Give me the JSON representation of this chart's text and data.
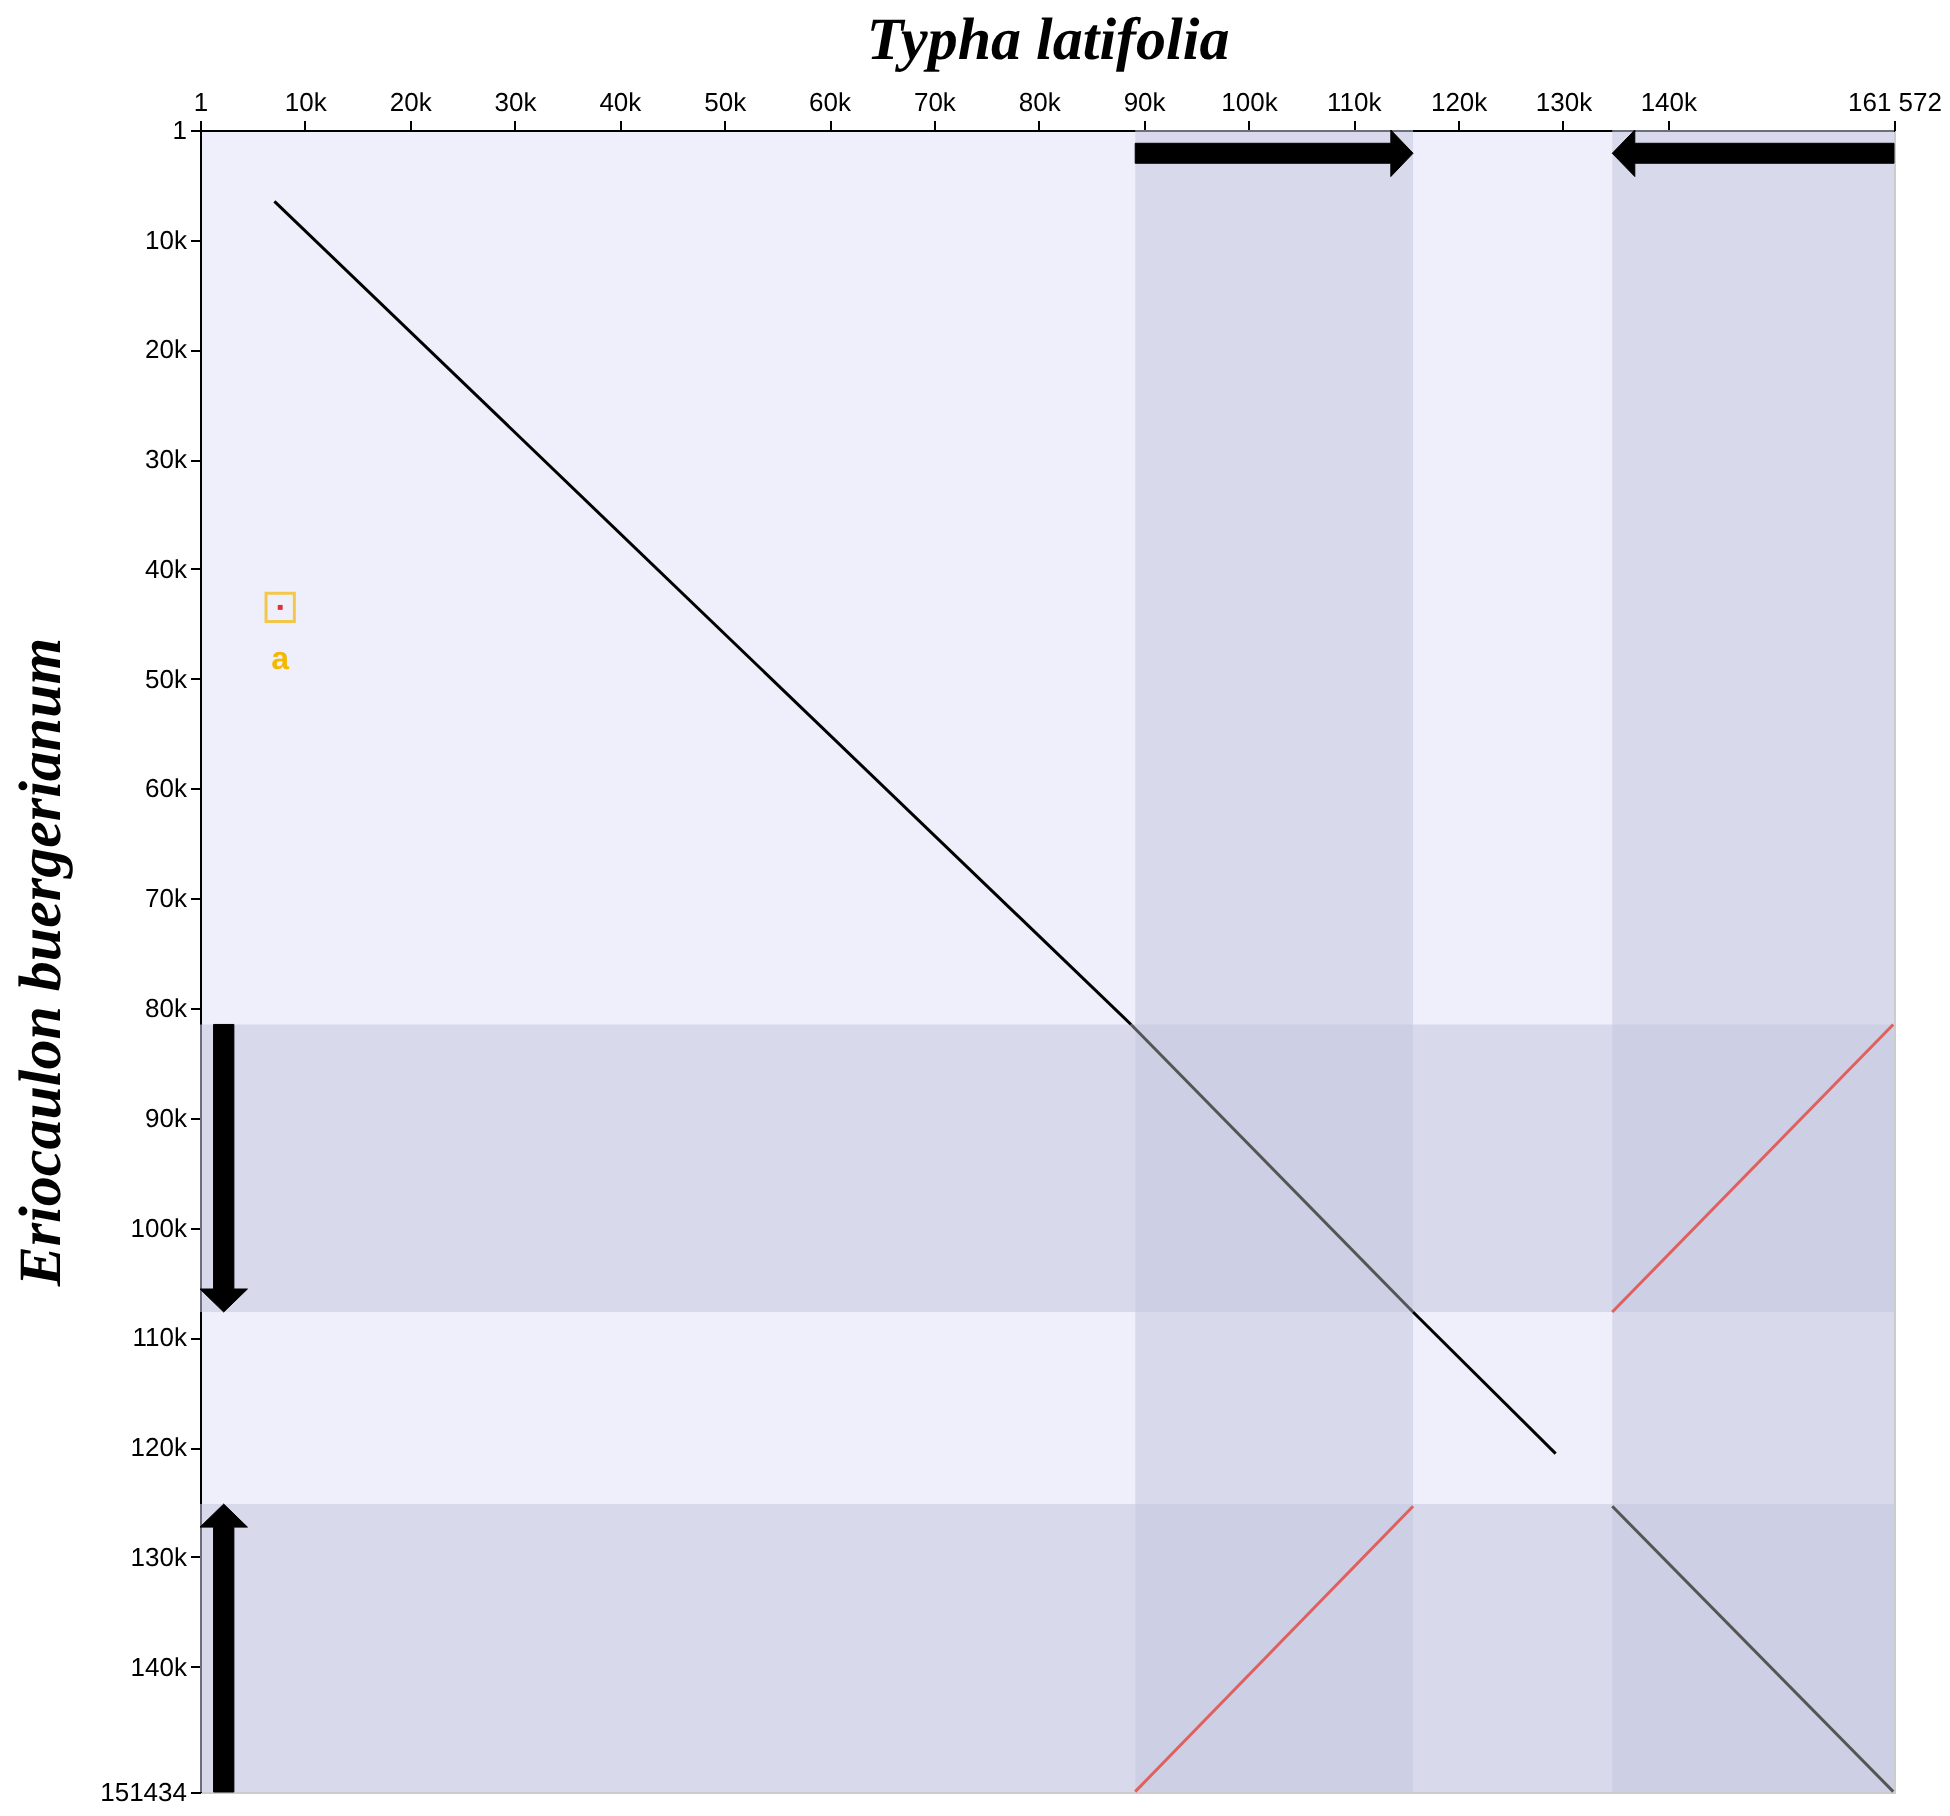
{
  "chart_data": {
    "type": "line",
    "xlabel": "Typha latifolia",
    "ylabel": "Eriocaulon buergerianum",
    "xlim": [
      1,
      161572
    ],
    "ylim": [
      151434,
      1
    ],
    "xticks": [
      1,
      {
        "value": 10000,
        "label": "10k"
      },
      {
        "value": 20000,
        "label": "20k"
      },
      {
        "value": 30000,
        "label": "30k"
      },
      {
        "value": 40000,
        "label": "40k"
      },
      {
        "value": 50000,
        "label": "50k"
      },
      {
        "value": 60000,
        "label": "60k"
      },
      {
        "value": 70000,
        "label": "70k"
      },
      {
        "value": 80000,
        "label": "80k"
      },
      {
        "value": 90000,
        "label": "90k"
      },
      {
        "value": 100000,
        "label": "100k"
      },
      {
        "value": 110000,
        "label": "110k"
      },
      {
        "value": 120000,
        "label": "120k"
      },
      {
        "value": 130000,
        "label": "130k"
      },
      {
        "value": 140000,
        "label": "140k"
      },
      {
        "value": 161572,
        "label": "161 572"
      }
    ],
    "yticks": [
      1,
      {
        "value": 10000,
        "label": "10k"
      },
      {
        "value": 20000,
        "label": "20k"
      },
      {
        "value": 30000,
        "label": "30k"
      },
      {
        "value": 40000,
        "label": "40k"
      },
      {
        "value": 50000,
        "label": "50k"
      },
      {
        "value": 60000,
        "label": "60k"
      },
      {
        "value": 70000,
        "label": "70k"
      },
      {
        "value": 80000,
        "label": "80k"
      },
      {
        "value": 90000,
        "label": "90k"
      },
      {
        "value": 100000,
        "label": "100k"
      },
      {
        "value": 110000,
        "label": "110k"
      },
      {
        "value": 120000,
        "label": "120k"
      },
      {
        "value": 130000,
        "label": "130k"
      },
      {
        "value": 140000,
        "label": "140k"
      },
      151434
    ],
    "series": [
      {
        "color": "#000000",
        "x": [
          7100,
          88800
        ],
        "values": [
          6500,
          81500
        ]
      },
      {
        "color": "#555555",
        "x": [
          88800,
          115700
        ],
        "values": [
          81500,
          107700
        ]
      },
      {
        "color": "#000000",
        "x": [
          115700,
          129300
        ],
        "values": [
          107700,
          120600
        ]
      },
      {
        "color": "#e06060",
        "x": [
          134700,
          161500
        ],
        "values": [
          107700,
          81500
        ]
      },
      {
        "color": "#e06060",
        "x": [
          89200,
          115700
        ],
        "values": [
          151400,
          125400
        ]
      },
      {
        "color": "#555555",
        "x": [
          134700,
          161500
        ],
        "values": [
          125400,
          151400
        ]
      },
      {
        "type": "scatter",
        "marker": "square",
        "color": "#e03030",
        "x": [
          7650
        ],
        "values": [
          43500
        ]
      }
    ],
    "bands": [
      {
        "axis": "x",
        "from": 89200,
        "to": 115700,
        "color": "#c4c9e0"
      },
      {
        "axis": "x",
        "from": 134700,
        "to": 161572,
        "color": "#c4c9e0"
      },
      {
        "axis": "y",
        "from": 81500,
        "to": 107700,
        "color": "#c4c9e0"
      },
      {
        "axis": "y",
        "from": 125200,
        "to": 151434,
        "color": "#c4c9e0"
      }
    ],
    "annotations": [
      {
        "text": "a",
        "x": 7650,
        "y": 43500
      }
    ],
    "grid": false,
    "line_style": "solid"
  }
}
